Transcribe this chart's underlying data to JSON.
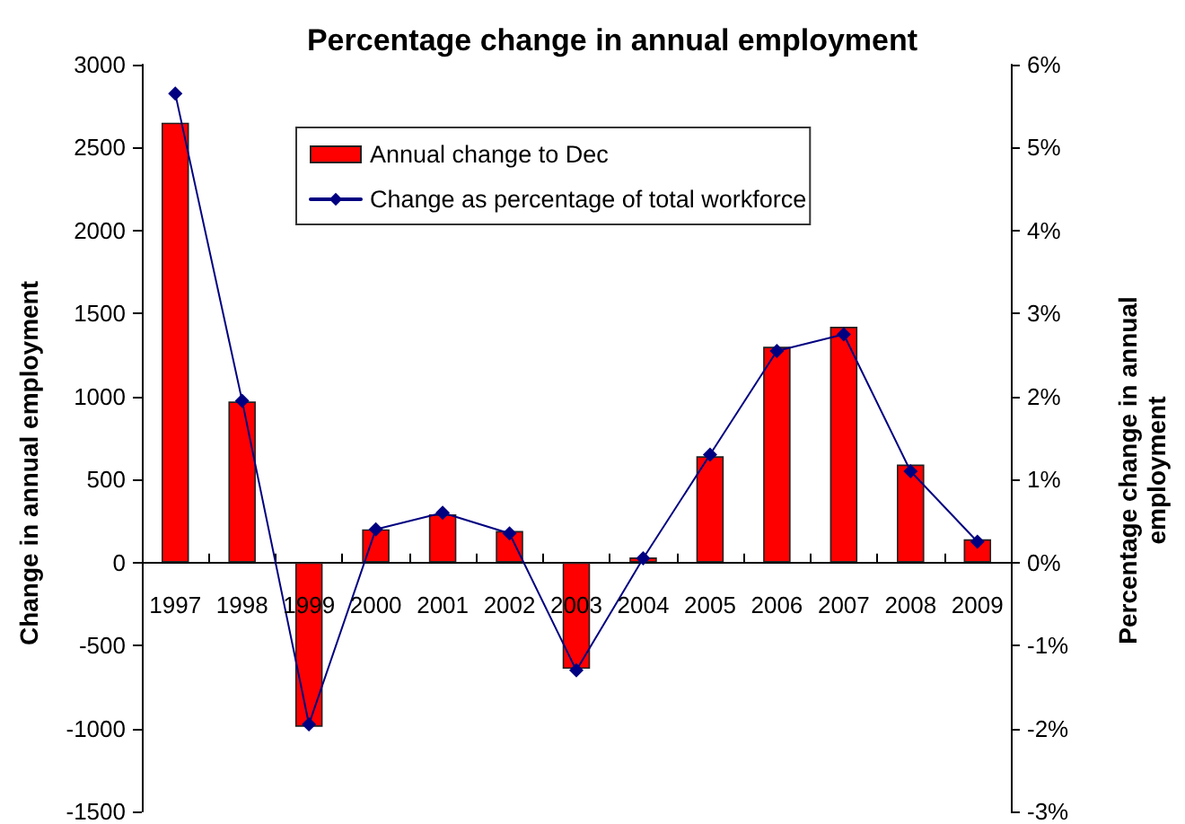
{
  "chart_data": {
    "type": "bar",
    "title": "Percentage change in annual employment",
    "ylabel": "Change in annual employment",
    "y2label": "Percentage change in annual employment",
    "categories": [
      "1997",
      "1998",
      "1999",
      "2000",
      "2001",
      "2002",
      "2003",
      "2004",
      "2005",
      "2006",
      "2007",
      "2008",
      "2009"
    ],
    "series": [
      {
        "name": "Annual change to Dec",
        "color": "#ff0000",
        "values": [
          2650,
          970,
          -990,
          200,
          290,
          190,
          -640,
          30,
          640,
          1300,
          1420,
          590,
          140
        ]
      },
      {
        "name": "Change as percentage of total workforce",
        "type": "line",
        "axis": "y2",
        "color": "#000080",
        "values": [
          5.65,
          1.95,
          -1.95,
          0.4,
          0.6,
          0.35,
          -1.3,
          0.05,
          1.3,
          2.55,
          2.75,
          1.1,
          0.25
        ]
      }
    ],
    "ylim": [
      -1500,
      3000
    ],
    "yticks": [
      -1500,
      -1000,
      -500,
      0,
      500,
      1000,
      1500,
      2000,
      2500,
      3000
    ],
    "y2lim": [
      -3,
      6
    ],
    "y2ticks": [
      {
        "value": -3,
        "label": "-3%"
      },
      {
        "value": -2,
        "label": "-2%"
      },
      {
        "value": -1,
        "label": "-1%"
      },
      {
        "value": 0,
        "label": "0%"
      },
      {
        "value": 1,
        "label": "1%"
      },
      {
        "value": 2,
        "label": "2%"
      },
      {
        "value": 3,
        "label": "3%"
      },
      {
        "value": 4,
        "label": "4%"
      },
      {
        "value": 5,
        "label": "5%"
      },
      {
        "value": 6,
        "label": "6%"
      }
    ],
    "legend": "top",
    "marker": "diamond"
  }
}
